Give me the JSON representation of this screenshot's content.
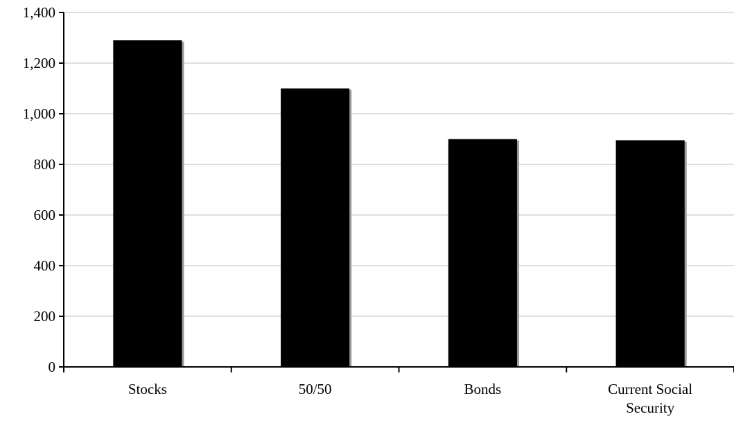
{
  "chart_data": {
    "type": "bar",
    "title": "",
    "xlabel": "",
    "ylabel": "",
    "categories": [
      [
        "Stocks"
      ],
      [
        "50/50"
      ],
      [
        "Bonds"
      ],
      [
        "Current Social",
        "Security"
      ]
    ],
    "values": [
      1290,
      1100,
      900,
      895
    ],
    "ylim": [
      0,
      1400
    ],
    "yticks": [
      {
        "value": 0,
        "label": "0"
      },
      {
        "value": 200,
        "label": "200"
      },
      {
        "value": 400,
        "label": "400"
      },
      {
        "value": 600,
        "label": "600"
      },
      {
        "value": 800,
        "label": "800"
      },
      {
        "value": 1000,
        "label": "1,000"
      },
      {
        "value": 1200,
        "label": "1,200"
      },
      {
        "value": 1400,
        "label": "1,400"
      }
    ],
    "grid": true,
    "legend": "none",
    "colors": {
      "bar": "#000000",
      "grid": "#bfbfbf",
      "axis": "#000000"
    }
  }
}
